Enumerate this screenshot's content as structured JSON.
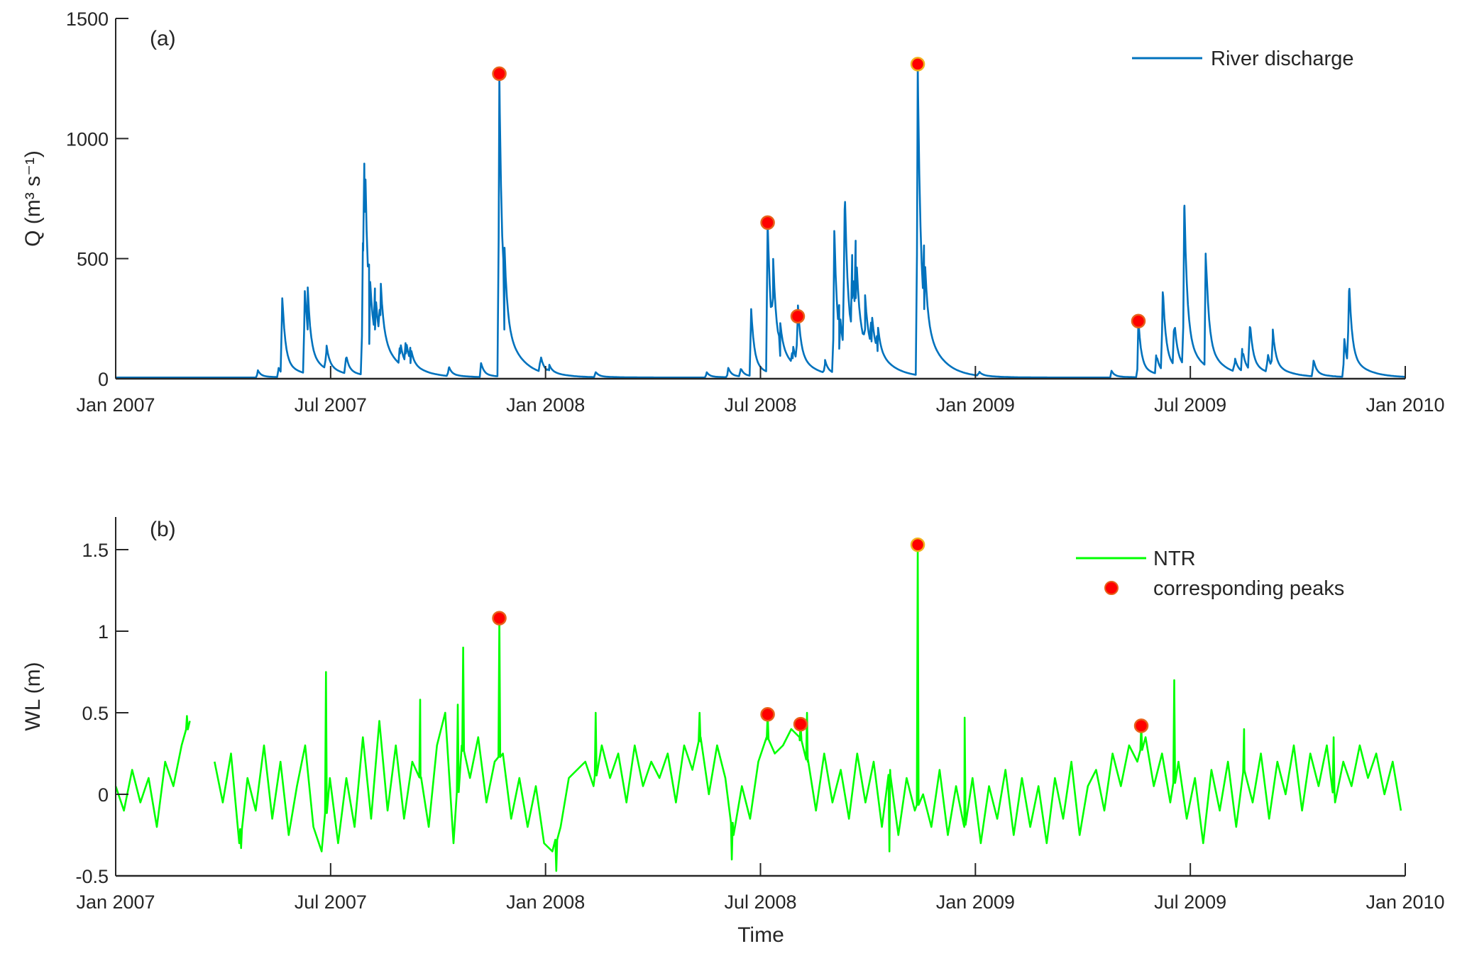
{
  "chart_data": [
    {
      "type": "line",
      "panel_label": "(a)",
      "ylabel": "Q (m³ s⁻¹)",
      "xlabel": "",
      "ylim": [
        0,
        1500
      ],
      "yticks": [
        0,
        500,
        1000,
        1500
      ],
      "ytick_labels": [
        "0",
        "500",
        "1000",
        "1500"
      ],
      "xlim_months_since_jan_2007": [
        0,
        36
      ],
      "xticks_months": [
        0,
        6,
        12,
        18,
        24,
        30,
        36
      ],
      "xtick_labels": [
        "Jan 2007",
        "Jul 2007",
        "Jan 2008",
        "Jul 2008",
        "Jan 2009",
        "Jul 2009",
        "Jan 2010"
      ],
      "legend": {
        "label": "River discharge",
        "placement": "top-right"
      },
      "color": "#0072BD",
      "baseline": 5,
      "peaks": [
        [
          3.97,
          30
        ],
        [
          4.55,
          40
        ],
        [
          4.65,
          330
        ],
        [
          5.28,
          360
        ],
        [
          5.36,
          200
        ],
        [
          5.88,
          105
        ],
        [
          6.43,
          80
        ],
        [
          6.9,
          560
        ],
        [
          6.95,
          690
        ],
        [
          7.08,
          140
        ],
        [
          7.24,
          200
        ],
        [
          7.39,
          260
        ],
        [
          7.94,
          100
        ],
        [
          8.1,
          100
        ],
        [
          8.23,
          60
        ],
        [
          9.3,
          40
        ],
        [
          10.2,
          60
        ],
        [
          10.71,
          1265
        ],
        [
          10.85,
          200
        ],
        [
          11.86,
          70
        ],
        [
          12.1,
          30
        ],
        [
          13.4,
          22
        ],
        [
          16.5,
          22
        ],
        [
          17.1,
          40
        ],
        [
          17.45,
          35
        ],
        [
          17.74,
          285
        ],
        [
          18.2,
          645
        ],
        [
          18.35,
          330
        ],
        [
          18.55,
          90
        ],
        [
          18.9,
          80
        ],
        [
          19.04,
          250
        ],
        [
          19.8,
          55
        ],
        [
          20.06,
          610
        ],
        [
          20.2,
          120
        ],
        [
          20.35,
          700
        ],
        [
          20.56,
          330
        ],
        [
          20.66,
          330
        ],
        [
          20.92,
          200
        ],
        [
          21.1,
          150
        ],
        [
          21.27,
          110
        ],
        [
          22.39,
          1305
        ],
        [
          22.57,
          285
        ],
        [
          24.1,
          18
        ],
        [
          27.8,
          28
        ],
        [
          28.55,
          240
        ],
        [
          29.05,
          85
        ],
        [
          29.23,
          355
        ],
        [
          29.55,
          200
        ],
        [
          29.83,
          705
        ],
        [
          30.43,
          500
        ],
        [
          31.24,
          60
        ],
        [
          31.45,
          100
        ],
        [
          31.66,
          210
        ],
        [
          32.16,
          80
        ],
        [
          32.3,
          165
        ],
        [
          33.44,
          70
        ],
        [
          34.3,
          160
        ],
        [
          34.43,
          360
        ]
      ],
      "markers": [
        [
          10.71,
          1270
        ],
        [
          18.2,
          650
        ],
        [
          19.04,
          260
        ],
        [
          22.39,
          1310
        ],
        [
          28.55,
          240
        ]
      ]
    },
    {
      "type": "line",
      "panel_label": "(b)",
      "ylabel": "WL (m)",
      "xlabel": "Time",
      "ylim": [
        -0.5,
        1.7
      ],
      "yticks": [
        -0.5,
        0,
        0.5,
        1,
        1.5
      ],
      "ytick_labels": [
        "-0.5",
        "0",
        "0.5",
        "1",
        "1.5"
      ],
      "xlim_months_since_jan_2007": [
        0,
        36
      ],
      "xticks_months": [
        0,
        6,
        12,
        18,
        24,
        30,
        36
      ],
      "xtick_labels": [
        "Jan 2007",
        "Jul 2007",
        "Jan 2008",
        "Jul 2008",
        "Jan 2009",
        "Jul 2009",
        "Jan 2010"
      ],
      "legend": {
        "line_label": "NTR",
        "marker_label": "corresponding peaks",
        "placement": "top-right"
      },
      "color": "#00FF00",
      "weekly_step_months": 0.23,
      "weekly_values": [
        0.05,
        -0.1,
        0.15,
        -0.05,
        0.1,
        -0.2,
        0.2,
        0.05,
        0.3,
        0.45,
        null,
        null,
        0.2,
        -0.05,
        0.25,
        -0.3,
        0.1,
        -0.1,
        0.3,
        -0.15,
        0.2,
        -0.25,
        0.05,
        0.3,
        -0.2,
        -0.35,
        0.1,
        -0.3,
        0.1,
        -0.2,
        0.35,
        -0.15,
        0.45,
        -0.1,
        0.3,
        -0.15,
        0.2,
        0.1,
        -0.2,
        0.3,
        0.5,
        -0.3,
        0.3,
        0.1,
        0.35,
        -0.05,
        0.2,
        0.25,
        -0.15,
        0.1,
        -0.2,
        0.05,
        -0.3,
        -0.35,
        -0.2,
        0.1,
        0.15,
        0.2,
        0.05,
        0.3,
        0.1,
        0.25,
        -0.05,
        0.3,
        0.05,
        0.2,
        0.1,
        0.25,
        -0.05,
        0.3,
        0.15,
        0.35,
        0.0,
        0.3,
        0.1,
        -0.25,
        0.05,
        -0.15,
        0.2,
        0.35,
        0.25,
        0.3,
        0.4,
        0.35,
        0.2,
        -0.1,
        0.25,
        -0.05,
        0.15,
        -0.15,
        0.25,
        -0.05,
        0.2,
        -0.2,
        0.15,
        -0.25,
        0.1,
        -0.1,
        0.0,
        -0.2,
        0.15,
        -0.25,
        0.05,
        -0.2,
        0.1,
        -0.3,
        0.05,
        -0.15,
        0.15,
        -0.25,
        0.1,
        -0.2,
        0.05,
        -0.3,
        0.1,
        -0.15,
        0.2,
        -0.25,
        0.05,
        0.15,
        -0.1,
        0.25,
        0.05,
        0.3,
        0.2,
        0.35,
        0.05,
        0.25,
        -0.05,
        0.2,
        -0.15,
        0.1,
        -0.3,
        0.15,
        -0.1,
        0.2,
        -0.2,
        0.15,
        -0.05,
        0.25,
        -0.15,
        0.2,
        0.0,
        0.3,
        -0.1,
        0.25,
        0.05,
        0.3,
        -0.05,
        0.2,
        0.05,
        0.3,
        0.1,
        0.25,
        0.0,
        0.2,
        -0.1
      ],
      "spikes": [
        [
          1.99,
          0.48
        ],
        [
          3.5,
          -0.33
        ],
        [
          5.87,
          0.75
        ],
        [
          8.5,
          0.58
        ],
        [
          9.55,
          0.55
        ],
        [
          9.7,
          0.9
        ],
        [
          10.71,
          1.08
        ],
        [
          12.3,
          -0.47
        ],
        [
          13.4,
          0.5
        ],
        [
          16.3,
          0.5
        ],
        [
          17.2,
          -0.4
        ],
        [
          18.2,
          0.49
        ],
        [
          19.12,
          0.43
        ],
        [
          19.3,
          0.5
        ],
        [
          21.6,
          -0.35
        ],
        [
          22.39,
          1.53
        ],
        [
          23.7,
          0.47
        ],
        [
          28.63,
          0.42
        ],
        [
          29.55,
          0.7
        ],
        [
          31.5,
          0.4
        ],
        [
          34.0,
          0.35
        ]
      ],
      "markers": [
        [
          10.71,
          1.08
        ],
        [
          18.2,
          0.49
        ],
        [
          19.12,
          0.43
        ],
        [
          22.39,
          1.53
        ],
        [
          28.63,
          0.42
        ]
      ]
    }
  ],
  "colors": {
    "marker_fill": "#FF0000",
    "marker_edge": "#E8621A",
    "marker_edge_alt": "#F2B21B",
    "axis": "#262626"
  }
}
